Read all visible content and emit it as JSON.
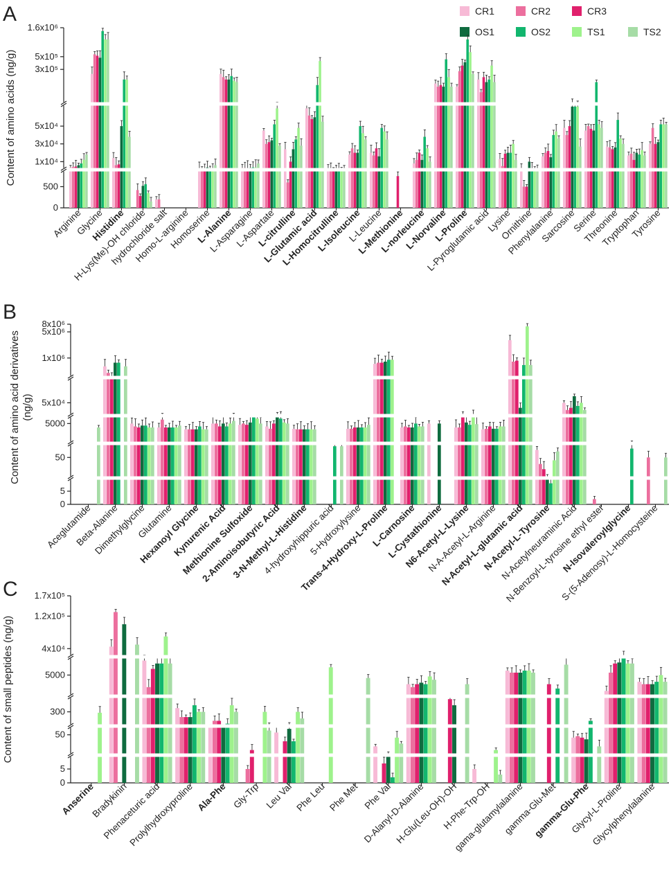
{
  "figure": {
    "series_names": [
      "CR1",
      "CR2",
      "CR3",
      "OS1",
      "OS2",
      "TS1",
      "TS2"
    ],
    "series_colors": [
      "#f7bad6",
      "#ec6f9e",
      "#e0206c",
      "#0f6b3f",
      "#12b66e",
      "#9ef28c",
      "#a6dca6"
    ],
    "error_bar_color": "#333333"
  },
  "chart_data": [
    {
      "panel": "A",
      "type": "bar",
      "ylabel": "Content of amino acids (ng/g)",
      "tick_labels": [
        "0",
        "500",
        "1x10⁴",
        "3x10⁴",
        "5x10⁴",
        "3x10⁵",
        "5x10⁵",
        "1.6x10⁶"
      ],
      "tick_values": [
        0,
        500,
        10000,
        30000,
        50000,
        300000,
        500000,
        1600000
      ],
      "segments": [
        {
          "min": 0,
          "max": 900,
          "scale": "linear"
        },
        {
          "min": 900,
          "max": 75000,
          "scale": "linear"
        },
        {
          "min": 75000,
          "max": 1600000,
          "scale": "log"
        }
      ],
      "categories": [
        {
          "label": "Arginine",
          "bold": false
        },
        {
          "label": "Glycine",
          "bold": false
        },
        {
          "label": "Histidine",
          "bold": true
        },
        {
          "label": "H-Lys(Me)-OH chloride",
          "bold": false
        },
        {
          "label": "hydrochloride salt",
          "bold": false
        },
        {
          "label": "Homo-L-arginine",
          "bold": false
        },
        {
          "label": "Homoserine",
          "bold": false
        },
        {
          "label": "L-Alanine",
          "bold": true
        },
        {
          "label": "L-Asparagine",
          "bold": false
        },
        {
          "label": "L-Aspartate",
          "bold": false
        },
        {
          "label": "L-citrulline",
          "bold": true
        },
        {
          "label": "L-Glutamic acid",
          "bold": true
        },
        {
          "label": "L-Homocitrulline",
          "bold": true
        },
        {
          "label": "L-Isoleucine",
          "bold": true
        },
        {
          "label": "L-Leucine",
          "bold": false
        },
        {
          "label": "L-Methionine",
          "bold": true
        },
        {
          "label": "L-norleucine",
          "bold": true
        },
        {
          "label": "L-Norvaline",
          "bold": true
        },
        {
          "label": "L-Proline",
          "bold": true
        },
        {
          "label": "L-Pyroglutamic acid",
          "bold": false
        },
        {
          "label": "Lysine",
          "bold": false
        },
        {
          "label": "Ornithine",
          "bold": false
        },
        {
          "label": "Phenylalanine",
          "bold": false
        },
        {
          "label": "Sarcosine",
          "bold": false
        },
        {
          "label": "Serine",
          "bold": false
        },
        {
          "label": "Threonine",
          "bold": false
        },
        {
          "label": "Tryptophan",
          "bold": false
        },
        {
          "label": "Tyrosine",
          "bold": false
        }
      ],
      "values": [
        [
          3500,
          4000,
          4500,
          6000,
          8000,
          12000,
          18000
        ],
        [
          250000,
          550000,
          520000,
          480000,
          1400000,
          1000000,
          1000000
        ],
        [
          14000,
          6000,
          7000,
          50000,
          200000,
          200000,
          38000
        ],
        [
          0,
          420,
          280,
          520,
          560,
          350,
          150
        ],
        [
          200,
          200,
          0,
          0,
          0,
          0,
          0
        ],
        [
          0,
          0,
          0,
          0,
          0,
          0,
          0
        ],
        [
          2500,
          2000,
          2500,
          3500,
          2500,
          3000,
          6000
        ],
        [
          250000,
          220000,
          200000,
          200000,
          230000,
          190000,
          180000
        ],
        [
          3000,
          3000,
          2500,
          3000,
          3500,
          3500,
          8000
        ],
        [
          45000,
          30000,
          32000,
          34000,
          52000,
          70000,
          28000
        ],
        [
          24000,
          600,
          10000,
          24000,
          35000,
          48000,
          28000
        ],
        [
          70000,
          62000,
          58000,
          60000,
          160000,
          420000,
          55000
        ],
        [
          2000,
          1500,
          1000,
          1200,
          1100,
          1200,
          1100
        ],
        [
          18000,
          25000,
          20000,
          20000,
          50000,
          42000,
          35000
        ],
        [
          20000,
          17000,
          25000,
          16000,
          48000,
          44000,
          35000
        ],
        [
          0,
          0,
          750,
          0,
          0,
          0,
          0
        ],
        [
          8000,
          12000,
          20000,
          12000,
          38000,
          25000,
          10000
        ],
        [
          170000,
          150000,
          160000,
          150000,
          450000,
          220000,
          150000
        ],
        [
          150000,
          280000,
          350000,
          400000,
          1000000,
          600000,
          250000
        ],
        [
          200000,
          120000,
          220000,
          180000,
          200000,
          350000,
          180000
        ],
        [
          13000,
          5000,
          19000,
          20000,
          20000,
          30000,
          12000
        ],
        [
          3000,
          500,
          500,
          10000,
          2000,
          2000,
          1500
        ],
        [
          16000,
          20000,
          22000,
          15000,
          40000,
          44000,
          36000
        ],
        [
          48000,
          40000,
          50000,
          72000,
          72000,
          72000,
          27000
        ],
        [
          45000,
          50000,
          47000,
          45000,
          180000,
          52000,
          48000
        ],
        [
          27000,
          26000,
          24000,
          26000,
          57000,
          36000,
          30000
        ],
        [
          17000,
          19000,
          12000,
          20000,
          18000,
          23000,
          17000
        ],
        [
          30000,
          48000,
          30000,
          32000,
          52000,
          52000,
          52000
        ]
      ]
    },
    {
      "panel": "B",
      "type": "bar",
      "ylabel": "Content of amino acid derivatives (ng/g)",
      "tick_labels": [
        "0",
        "5",
        "50",
        "5000",
        "5x10⁴",
        "1x10⁶",
        "5x10⁶",
        "8x10⁶"
      ],
      "tick_values": [
        0,
        5,
        50,
        5000,
        50000,
        1000000,
        5000000,
        8000000
      ],
      "segments": [
        {
          "min": 0,
          "max": 10,
          "scale": "linear"
        },
        {
          "min": 10,
          "max": 150,
          "scale": "log"
        },
        {
          "min": 150,
          "max": 20000,
          "scale": "log"
        },
        {
          "min": 20000,
          "max": 300000,
          "scale": "log"
        },
        {
          "min": 300000,
          "max": 8000000,
          "scale": "log"
        }
      ],
      "categories": [
        {
          "label": "Aceglutamide",
          "bold": false
        },
        {
          "label": "Beta-Alanine",
          "bold": false
        },
        {
          "label": "Dimethylglycine",
          "bold": false
        },
        {
          "label": "Glutamine",
          "bold": false
        },
        {
          "label": "Hexanoyl Glycine",
          "bold": true
        },
        {
          "label": "Kynurenic Acid",
          "bold": true
        },
        {
          "label": "Methionine Sulfoxide",
          "bold": true
        },
        {
          "label": "2-Aminoisobutyric Acid",
          "bold": true
        },
        {
          "label": "3-N-Methyl-L-Histidine",
          "bold": true
        },
        {
          "label": "4-hydroxyhippuric acid",
          "bold": false
        },
        {
          "label": "5-Hydroxylysine",
          "bold": false
        },
        {
          "label": "Trans-4-Hydroxy-L-Proline",
          "bold": true
        },
        {
          "label": "L-Carnosine",
          "bold": true
        },
        {
          "label": "L-Cystathionine",
          "bold": true
        },
        {
          "label": "N6-Acetyl-L-Lysine",
          "bold": true
        },
        {
          "label": "N-A-Acetyl-L-Arginine",
          "bold": false
        },
        {
          "label": "N-Acetyl-L-glutamic acid",
          "bold": true
        },
        {
          "label": "N-Acetyl-L-Tyrosine",
          "bold": true
        },
        {
          "label": "N-Acetylneuraminic Acid",
          "bold": false
        },
        {
          "label": "N-Benzoyl-L-tyrosine ethyl ester",
          "bold": false
        },
        {
          "label": "N-Isovaleroylglycine",
          "bold": true
        },
        {
          "label": "S-(5-Adenosy)-L-Homocysteine",
          "bold": false
        }
      ],
      "values": [
        [
          0,
          0,
          0,
          0,
          0,
          0,
          2500
        ],
        [
          600000,
          400000,
          300000,
          750000,
          750000,
          0,
          600000
        ],
        [
          5000,
          3000,
          2500,
          3500,
          3500,
          2500,
          2500
        ],
        [
          2500,
          10000,
          2500,
          2500,
          2500,
          2500,
          3500
        ],
        [
          1800,
          1800,
          1800,
          1800,
          3000,
          1800,
          1800
        ],
        [
          5000,
          5000,
          3000,
          5000,
          3000,
          5000,
          8000
        ],
        [
          4000,
          5000,
          4000,
          6000,
          15000,
          12000,
          5000
        ],
        [
          3000,
          2000,
          5000,
          15000,
          12000,
          6000,
          5000
        ],
        [
          2000,
          1800,
          1800,
          1800,
          1800,
          1800,
          1800
        ],
        [
          0,
          0,
          0,
          0,
          120,
          0,
          120
        ],
        [
          2000,
          2000,
          2500,
          2500,
          2500,
          2500,
          4000
        ],
        [
          700000,
          750000,
          750000,
          800000,
          900000,
          900000,
          0
        ],
        [
          2500,
          3000,
          2500,
          2500,
          5000,
          3000,
          3000
        ],
        [
          5000,
          0,
          0,
          5000,
          0,
          0,
          0
        ],
        [
          2500,
          2500,
          15000,
          6000,
          4000,
          20000,
          4500
        ],
        [
          1800,
          2000,
          3000,
          2000,
          2000,
          3000,
          3000
        ],
        [
          3000000,
          800000,
          850000,
          35000,
          650000,
          7000000,
          650000
        ],
        [
          90,
          30,
          20,
          10,
          8,
          40,
          80
        ],
        [
          50000,
          30000,
          35000,
          80000,
          40000,
          50000,
          30000
        ],
        [
          0,
          2,
          0,
          0,
          0,
          0,
          0
        ],
        [
          0,
          0,
          0,
          0,
          100,
          0,
          0
        ],
        [
          0,
          50,
          0,
          0,
          0,
          0,
          50
        ]
      ]
    },
    {
      "panel": "C",
      "type": "bar",
      "ylabel": "Content of small peptides (ng/g)",
      "tick_labels": [
        "0",
        "5",
        "50",
        "300",
        "5000",
        "4x10⁴",
        "1.2x10⁵",
        "1.7x10⁵"
      ],
      "tick_values": [
        0,
        5,
        50,
        300,
        5000,
        40000,
        120000,
        170000
      ],
      "segments": [
        {
          "min": 0,
          "max": 10,
          "scale": "linear"
        },
        {
          "min": 10,
          "max": 100,
          "scale": "log"
        },
        {
          "min": 100,
          "max": 1000,
          "scale": "log"
        },
        {
          "min": 1000,
          "max": 20000,
          "scale": "log"
        },
        {
          "min": 20000,
          "max": 170000,
          "scale": "linear"
        }
      ],
      "categories": [
        {
          "label": "Anserine",
          "bold": true
        },
        {
          "label": "Bradykinin",
          "bold": false
        },
        {
          "label": "Phenaceturic acid",
          "bold": false
        },
        {
          "label": "Prolylhydroxyproline",
          "bold": false
        },
        {
          "label": "Ala-Phe",
          "bold": true
        },
        {
          "label": "Gly-Trp",
          "bold": false
        },
        {
          "label": "Leu Val",
          "bold": false
        },
        {
          "label": "Phe Leu",
          "bold": false
        },
        {
          "label": "Phe Met",
          "bold": false
        },
        {
          "label": "Phe Val",
          "bold": false
        },
        {
          "label": "D-Alanyl-D-Alanine",
          "bold": false
        },
        {
          "label": "H-Glu(Leu-OH)-OH",
          "bold": false
        },
        {
          "label": "H-Phe-Trp-OH",
          "bold": false
        },
        {
          "label": "gama-glutamylalanine",
          "bold": false
        },
        {
          "label": "gamma-Glu-Met",
          "bold": false
        },
        {
          "label": "gamma-Glu-Phe",
          "bold": true
        },
        {
          "label": "Glycyl-L-Proline",
          "bold": false
        },
        {
          "label": "Glycylphenylalanine",
          "bold": false
        }
      ],
      "values": [
        [
          0,
          0,
          0,
          0,
          0,
          280,
          0
        ],
        [
          45000,
          130000,
          0,
          100000,
          0,
          0,
          50000
        ],
        [
          15000,
          2000,
          8000,
          12000,
          12000,
          70000,
          12000
        ],
        [
          400,
          200,
          200,
          200,
          500,
          300,
          300
        ],
        [
          90,
          150,
          150,
          90,
          120,
          500,
          300
        ],
        [
          0,
          5,
          15,
          0,
          0,
          300,
          70
        ],
        [
          60,
          0,
          30,
          80,
          30,
          300,
          180
        ],
        [
          0,
          0,
          0,
          0,
          0,
          9000,
          0
        ],
        [
          0,
          0,
          0,
          0,
          0,
          0,
          4000
        ],
        [
          20,
          0,
          7,
          11,
          2,
          40,
          25
        ],
        [
          2500,
          2000,
          2500,
          2800,
          2500,
          4500,
          3500
        ],
        [
          0,
          0,
          800,
          500,
          0,
          0,
          2500
        ],
        [
          5,
          0,
          0,
          0,
          0,
          15,
          3
        ],
        [
          7000,
          6000,
          6000,
          6000,
          7000,
          7000,
          6000
        ],
        [
          0,
          0,
          2500,
          0,
          1800,
          0,
          11000
        ],
        [
          40,
          45,
          40,
          35,
          150,
          0,
          20
        ],
        [
          1500,
          6000,
          12000,
          13000,
          18000,
          12000,
          12000
        ],
        [
          3000,
          2500,
          2500,
          2500,
          3000,
          5000,
          3000
        ]
      ]
    }
  ]
}
